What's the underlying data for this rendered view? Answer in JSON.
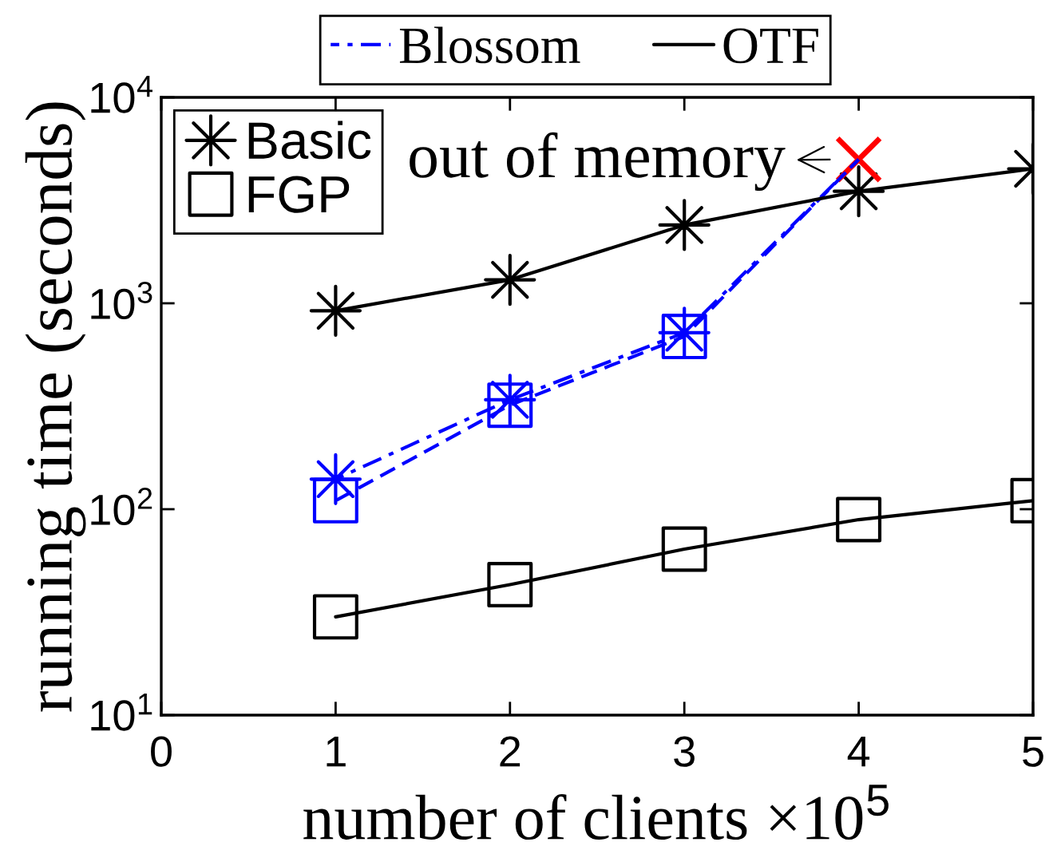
{
  "chart_data": {
    "type": "line",
    "xlabel": "number of clients ×10$^{5}$",
    "ylabel": "running time (seconds)",
    "x": [
      1,
      2,
      3,
      4,
      5
    ],
    "xlim": [
      0,
      5
    ],
    "xticks": [
      0,
      1,
      2,
      3,
      4,
      5
    ],
    "ylim": [
      10,
      10000
    ],
    "log": "y",
    "yticks": [
      {
        "value": 10,
        "label": "10$^{1}$"
      },
      {
        "value": 100,
        "label": "10$^{2}$"
      },
      {
        "value": 1000,
        "label": "10$^{3}$"
      },
      {
        "value": 10000,
        "label": "10$^{4}$"
      }
    ],
    "legend": "top",
    "annotations": [
      {
        "text": "out of memory",
        "x": 4,
        "y": 5000
      }
    ],
    "series": [
      {
        "name": "Blossom",
        "color": "#0000ff",
        "line_style": "dashdot",
        "marker": "none",
        "x": [
          1,
          2,
          3,
          4
        ],
        "values": [
          140,
          340,
          720,
          5000
        ]
      },
      {
        "color": "#0000ff",
        "line_style": "dashed",
        "marker": "none",
        "x": [
          1,
          2,
          3,
          4
        ],
        "values": [
          110,
          320,
          690,
          5000
        ]
      },
      {
        "name": "OTF",
        "color": "#000000",
        "line_style": "solid",
        "marker": "none",
        "values": [
          920,
          1300,
          2400,
          3500,
          4500
        ]
      },
      {
        "color": "#000000",
        "line_style": "solid",
        "marker": "none",
        "values": [
          30,
          43,
          64,
          89,
          110
        ]
      },
      {
        "type": "scatter",
        "name": "Basic",
        "color": "#000000",
        "marker": "star",
        "values": [
          920,
          1300,
          2400,
          3500,
          4500
        ]
      },
      {
        "type": "scatter",
        "name": "FGP",
        "color": "#000000",
        "marker": "square",
        "values": [
          30,
          43,
          64,
          89,
          110
        ]
      },
      {
        "type": "scatter",
        "color": "#0000ff",
        "marker": "star",
        "x": [
          1,
          2,
          3
        ],
        "values": [
          140,
          340,
          720
        ]
      },
      {
        "type": "scatter",
        "color": "#0000ff",
        "marker": "square",
        "x": [
          1,
          2,
          3
        ],
        "values": [
          110,
          320,
          690
        ]
      },
      {
        "type": "scatter",
        "color": "#ff0000",
        "marker": "cross",
        "x": [
          4
        ],
        "values": [
          5000
        ]
      }
    ]
  }
}
